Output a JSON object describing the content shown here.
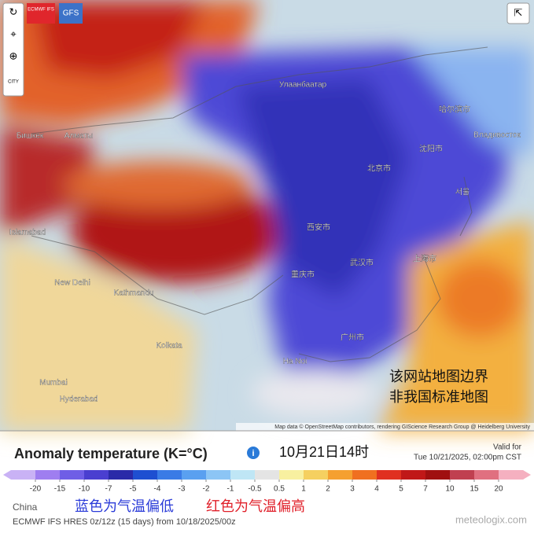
{
  "toolbar": {
    "models": [
      "ECMWF IFS",
      "GFS"
    ],
    "city": "CITY"
  },
  "map": {
    "cities": [
      "Улаанбаатар",
      "北京市",
      "哈尔滨市",
      "沈阳市",
      "上海市",
      "武汉市",
      "重庆市",
      "广州市",
      "西安市",
      "New Delhi",
      "Kathmandu",
      "Islamabad",
      "Бишкек",
      "Алматы",
      "Владивосток",
      "서울",
      "Ha Noi",
      "Kolkata",
      "Mumbai",
      "Hyderabad"
    ],
    "notice": [
      "该网站地图边界",
      "非我国标准地图"
    ],
    "attribution": "Map data © OpenStreetMap contributors, rendering GIScience Research Group @ Heidelberg University"
  },
  "header": {
    "title": "Anomaly temperature (K=°C)",
    "time": "10月21日14时",
    "valid_label": "Valid for",
    "valid_time": "Tue 10/21/2025, 02:00pm CST"
  },
  "legend": {
    "ticks": [
      -20,
      -15,
      -10,
      -7,
      -5,
      -4,
      -3,
      -2,
      -1,
      -0.5,
      0.5,
      1,
      2,
      3,
      4,
      5,
      7,
      10,
      15,
      20
    ],
    "colors": [
      "#c9b2f5",
      "#9f7ef0",
      "#6f5ee6",
      "#4a3fd0",
      "#2a2aa8",
      "#1e4fd1",
      "#3a7be6",
      "#5aa0f0",
      "#8cc5f5",
      "#bfe6f5",
      "#e4e4e4",
      "#f8f0a0",
      "#f5d060",
      "#f5a030",
      "#f07020",
      "#e03020",
      "#c01818",
      "#a01010",
      "#c04050",
      "#e07080",
      "#f5b0c0"
    ]
  },
  "footer": {
    "region": "China",
    "note_cold": "蓝色为气温偏低",
    "note_warm": "红色为气温偏高",
    "model_info": "ECMWF IFS HRES 0z/12z (15 days) from 10/18/2025/00z",
    "watermark": "meteologix.com"
  }
}
